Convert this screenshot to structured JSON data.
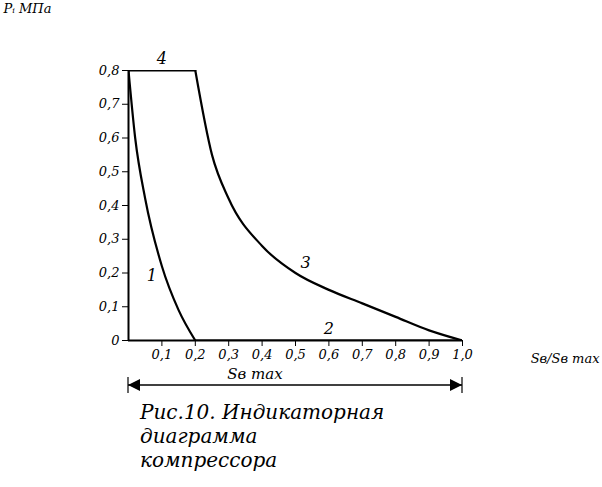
{
  "chart_data": {
    "type": "line",
    "title": "Рис.10. Индикаторная диаграмма компрессора",
    "x_label": "Sв/Sв max",
    "y_label": "Pᵢ МПа",
    "annotations": [
      "Sв max"
    ],
    "xlim": [
      0,
      1.0
    ],
    "ylim": [
      0,
      0.8
    ],
    "xticks": [
      {
        "value": 0.1,
        "label": "0,1"
      },
      {
        "value": 0.2,
        "label": "0,2"
      },
      {
        "value": 0.3,
        "label": "0,3"
      },
      {
        "value": 0.4,
        "label": "0,4"
      },
      {
        "value": 0.5,
        "label": "0,5"
      },
      {
        "value": 0.6,
        "label": "0,6"
      },
      {
        "value": 0.7,
        "label": "0,7"
      },
      {
        "value": 0.8,
        "label": "0,8"
      },
      {
        "value": 0.9,
        "label": "0,9"
      },
      {
        "value": 1.0,
        "label": "1,0"
      }
    ],
    "yticks": [
      0,
      {
        "value": 0.1,
        "label": "0,1"
      },
      {
        "value": 0.2,
        "label": "0,2"
      },
      {
        "value": 0.3,
        "label": "0,3"
      },
      {
        "value": 0.4,
        "label": "0,4"
      },
      {
        "value": 0.5,
        "label": "0,5"
      },
      {
        "value": 0.6,
        "label": "0,6"
      },
      {
        "value": 0.7,
        "label": "0,7"
      },
      {
        "value": 0.8,
        "label": "0,8"
      }
    ],
    "grid": false,
    "series": [
      {
        "name": "1",
        "color": "#000000",
        "line_style": "solid",
        "x": [
          0,
          0.02,
          0.05,
          0.1,
          0.15,
          0.2
        ],
        "values": [
          0.8,
          0.6,
          0.42,
          0.22,
          0.09,
          0
        ]
      },
      {
        "name": "2",
        "color": "#000000",
        "line_style": "solid",
        "x": [
          0.2,
          0.6,
          1.0
        ],
        "values": [
          0,
          0,
          0
        ]
      },
      {
        "name": "3",
        "color": "#000000",
        "line_style": "solid",
        "x": [
          1.0,
          0.9,
          0.8,
          0.7,
          0.6,
          0.5,
          0.4,
          0.3,
          0.25,
          0.2
        ],
        "values": [
          0,
          0.03,
          0.07,
          0.11,
          0.15,
          0.2,
          0.28,
          0.42,
          0.55,
          0.8
        ]
      },
      {
        "name": "4",
        "color": "#000000",
        "line_style": "solid",
        "x": [
          0.2,
          0.1,
          0
        ],
        "values": [
          0.8,
          0.8,
          0.8
        ]
      }
    ]
  }
}
